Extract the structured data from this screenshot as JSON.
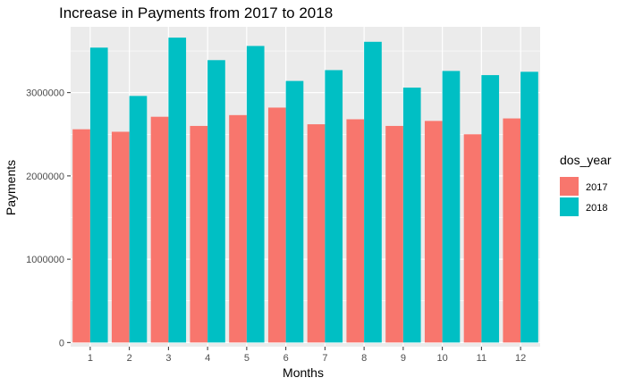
{
  "chart_data": {
    "type": "bar",
    "title": "Increase in Payments from 2017 to 2018",
    "xlabel": "Months",
    "ylabel": "Payments",
    "categories": [
      "1",
      "2",
      "3",
      "4",
      "5",
      "6",
      "7",
      "8",
      "9",
      "10",
      "11",
      "12"
    ],
    "series": [
      {
        "name": "2017",
        "color": "#F8766D",
        "values": [
          2560000,
          2530000,
          2710000,
          2600000,
          2730000,
          2820000,
          2620000,
          2680000,
          2600000,
          2660000,
          2500000,
          2690000
        ]
      },
      {
        "name": "2018",
        "color": "#00BFC4",
        "values": [
          3540000,
          2960000,
          3660000,
          3390000,
          3560000,
          3140000,
          3270000,
          3610000,
          3060000,
          3260000,
          3210000,
          3250000
        ]
      }
    ],
    "ylim": [
      -50000,
      3790000
    ],
    "yticks": [
      0,
      1000000,
      2000000,
      3000000
    ],
    "ytick_labels": [
      "0",
      "1000000",
      "2000000",
      "3000000"
    ],
    "grid": true,
    "panel_background": "#EBEBEB",
    "legend": {
      "title": "dos_year",
      "position": "right",
      "entries": [
        "2017",
        "2018"
      ]
    }
  }
}
